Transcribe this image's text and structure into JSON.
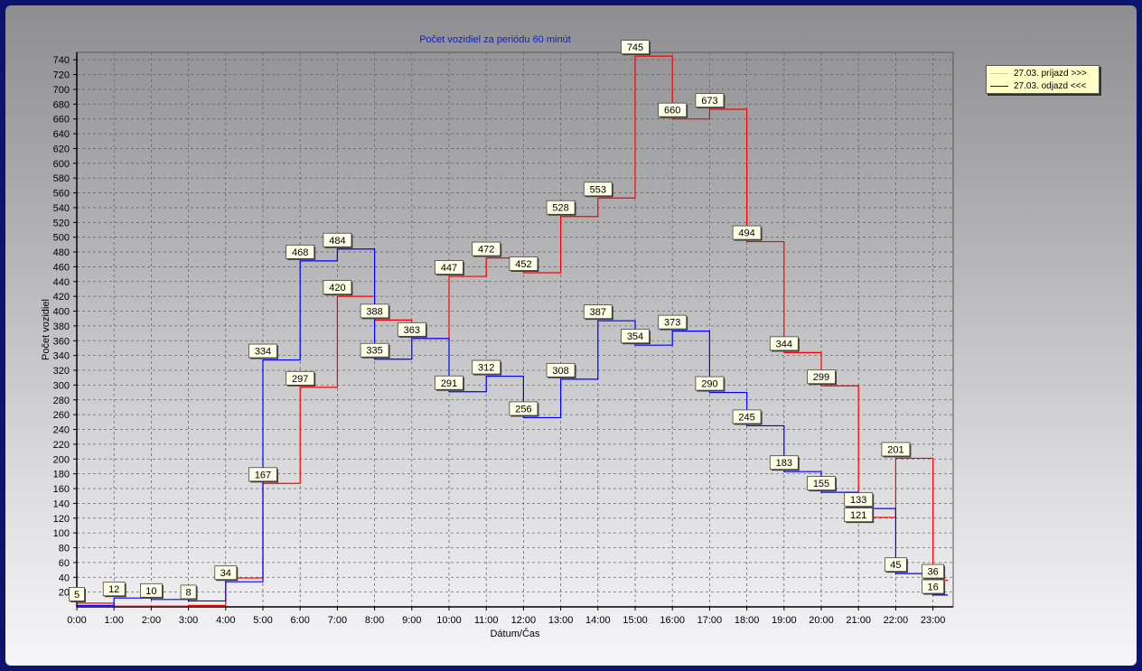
{
  "chart_data": {
    "type": "line",
    "title": "Počet vozidiel za periódu 60 minút",
    "xlabel": "Dátum/Čas",
    "ylabel": "Počet vozidiel",
    "categories": [
      "0:00",
      "1:00",
      "2:00",
      "3:00",
      "4:00",
      "5:00",
      "6:00",
      "7:00",
      "8:00",
      "9:00",
      "10:00",
      "11:00",
      "12:00",
      "13:00",
      "14:00",
      "15:00",
      "16:00",
      "17:00",
      "18:00",
      "19:00",
      "20:00",
      "21:00",
      "22:00",
      "23:00"
    ],
    "ylim": [
      0,
      750
    ],
    "yticks": [
      20,
      40,
      60,
      80,
      100,
      120,
      140,
      160,
      180,
      200,
      220,
      240,
      260,
      280,
      300,
      320,
      340,
      360,
      380,
      400,
      420,
      440,
      460,
      480,
      500,
      520,
      540,
      560,
      580,
      600,
      620,
      640,
      660,
      680,
      700,
      720,
      740
    ],
    "grid": true,
    "step": true,
    "legend_position": "right",
    "series": [
      {
        "name": "27.03.  príjazd >>>",
        "legend_color": "#ffd200",
        "color": "#ff0000",
        "values": [
          5,
          1,
          1,
          2,
          39,
          167,
          297,
          420,
          388,
          363,
          447,
          472,
          452,
          528,
          553,
          745,
          660,
          673,
          494,
          344,
          299,
          121,
          201,
          36
        ]
      },
      {
        "name": "27.03.  odjazd <<<",
        "legend_color": "#0000ff",
        "color": "#0000ff",
        "values": [
          2,
          12,
          10,
          8,
          34,
          334,
          468,
          484,
          335,
          363,
          291,
          312,
          256,
          308,
          387,
          354,
          373,
          290,
          245,
          183,
          155,
          133,
          45,
          16
        ]
      }
    ],
    "data_labels": [
      {
        "text": "5",
        "category": "0:00"
      },
      {
        "text": "12",
        "category": "1:00"
      },
      {
        "text": "10",
        "category": "2:00"
      },
      {
        "text": "8",
        "category": "3:00"
      },
      {
        "text": "34",
        "category": "4:00"
      },
      {
        "text": "334",
        "category": "5:00"
      },
      {
        "text": "167",
        "category": "5:00"
      },
      {
        "text": "468",
        "category": "6:00"
      },
      {
        "text": "297",
        "category": "6:00"
      },
      {
        "text": "484",
        "category": "7:00"
      },
      {
        "text": "420",
        "category": "7:00"
      },
      {
        "text": "388",
        "category": "8:00"
      },
      {
        "text": "335",
        "category": "8:00"
      },
      {
        "text": "363",
        "category": "9:00"
      },
      {
        "text": "447",
        "category": "10:00"
      },
      {
        "text": "291",
        "category": "10:00"
      },
      {
        "text": "472",
        "category": "11:00"
      },
      {
        "text": "312",
        "category": "11:00"
      },
      {
        "text": "452",
        "category": "12:00"
      },
      {
        "text": "256",
        "category": "12:00"
      },
      {
        "text": "528",
        "category": "13:00"
      },
      {
        "text": "308",
        "category": "13:00"
      },
      {
        "text": "553",
        "category": "14:00"
      },
      {
        "text": "387",
        "category": "14:00"
      },
      {
        "text": "745",
        "category": "15:00"
      },
      {
        "text": "354",
        "category": "15:00"
      },
      {
        "text": "660",
        "category": "16:00"
      },
      {
        "text": "373",
        "category": "16:00"
      },
      {
        "text": "673",
        "category": "17:00"
      },
      {
        "text": "290",
        "category": "17:00"
      },
      {
        "text": "494",
        "category": "18:00"
      },
      {
        "text": "245",
        "category": "18:00"
      },
      {
        "text": "344",
        "category": "19:00"
      },
      {
        "text": "183",
        "category": "19:00"
      },
      {
        "text": "299",
        "category": "20:00"
      },
      {
        "text": "155",
        "category": "20:00"
      },
      {
        "text": "133",
        "category": "21:00"
      },
      {
        "text": "121",
        "category": "21:00"
      },
      {
        "text": "201",
        "category": "22:00"
      },
      {
        "text": "45",
        "category": "22:00"
      },
      {
        "text": "36",
        "category": "23:00"
      },
      {
        "text": "16",
        "category": "23:00"
      }
    ]
  }
}
